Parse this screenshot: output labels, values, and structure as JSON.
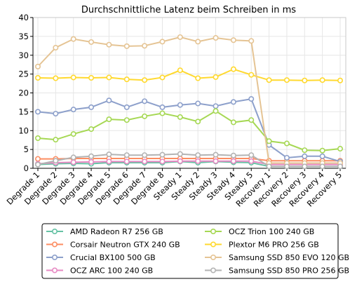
{
  "chart_data": {
    "type": "line",
    "title": "Durchschnittliche Latenz beim Schreiben in ms",
    "xlabel": "",
    "ylabel": "",
    "ylim": [
      0,
      40
    ],
    "yticks": [
      0,
      5,
      10,
      15,
      20,
      25,
      30,
      35,
      40
    ],
    "grid": true,
    "legend_position": "bottom",
    "categories": [
      "Degrade 1",
      "Degrade 2",
      "Degrade 3",
      "Degrade 4",
      "Degrade 5",
      "Degrade 6",
      "Degrade 7",
      "Degrade 8",
      "Steady 1",
      "Steady 2",
      "Steady 3",
      "Steady 4",
      "Steady 5",
      "Recovery 1",
      "Recovery 2",
      "Recovery 3",
      "Recovery 4",
      "Recovery 5"
    ],
    "series": [
      {
        "name": "AMD Radeon R7 256 GB",
        "color": "#66c2a5",
        "values": [
          1.0,
          1.2,
          1.3,
          1.2,
          1.5,
          1.5,
          1.5,
          1.5,
          1.8,
          1.5,
          1.8,
          1.6,
          1.5,
          0.5,
          0.5,
          0.5,
          0.5,
          0.5
        ]
      },
      {
        "name": "Corsair Neutron GTX 240 GB",
        "color": "#fc8d62",
        "values": [
          2.5,
          2.5,
          2.6,
          2.6,
          2.6,
          2.6,
          2.6,
          2.6,
          2.6,
          2.6,
          2.6,
          2.6,
          2.6,
          2.0,
          2.0,
          2.0,
          2.0,
          2.0
        ]
      },
      {
        "name": "Crucial BX100 500 GB",
        "color": "#8da0cb",
        "values": [
          15.0,
          14.5,
          15.6,
          16.2,
          18.0,
          16.2,
          17.8,
          16.2,
          16.8,
          17.2,
          16.5,
          17.6,
          18.4,
          6.2,
          2.8,
          3.2,
          3.2,
          1.8
        ]
      },
      {
        "name": "OCZ ARC 100 240 GB",
        "color": "#e78ac3",
        "values": [
          1.2,
          1.5,
          1.6,
          1.7,
          1.8,
          1.8,
          1.8,
          1.8,
          1.9,
          1.9,
          1.9,
          1.9,
          1.9,
          1.0,
          1.0,
          1.0,
          1.0,
          1.0
        ]
      },
      {
        "name": "OCZ Trion 100 240 GB",
        "color": "#a6d854",
        "values": [
          8.0,
          7.6,
          9.1,
          10.4,
          13.0,
          12.8,
          13.8,
          14.6,
          13.6,
          12.4,
          15.2,
          12.2,
          12.8,
          7.2,
          6.6,
          4.8,
          4.7,
          5.2
        ]
      },
      {
        "name": "Plextor M6 PRO 256 GB",
        "color": "#ffd92f",
        "values": [
          24.0,
          23.9,
          24.1,
          24.0,
          24.1,
          23.6,
          23.4,
          24.1,
          26.0,
          23.9,
          24.2,
          26.3,
          24.8,
          23.4,
          23.4,
          23.3,
          23.4,
          23.3
        ]
      },
      {
        "name": "Samsung SSD 850 EVO 120 GB",
        "color": "#e5c494",
        "values": [
          27.0,
          32.0,
          34.3,
          33.5,
          32.8,
          32.4,
          32.5,
          33.6,
          34.8,
          33.6,
          34.6,
          34.0,
          33.8,
          1.4,
          1.4,
          1.4,
          1.4,
          1.4
        ]
      },
      {
        "name": "Samsung SSD 850 PRO 256 GB",
        "color": "#b3b3b3",
        "values": [
          1.0,
          2.0,
          2.9,
          3.2,
          3.7,
          3.5,
          3.5,
          3.6,
          3.8,
          3.5,
          3.6,
          3.4,
          3.5,
          0.5,
          0.5,
          0.5,
          0.5,
          0.5
        ]
      }
    ]
  }
}
